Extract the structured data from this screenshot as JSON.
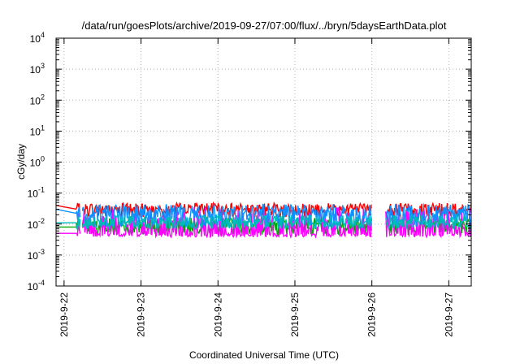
{
  "chart_data": {
    "type": "line",
    "title": "/data/run/goesPlots/archive/2019-09-27/07:00/flux/../bryn/5daysEarthData.plot",
    "xlabel": "Coordinated Universal Time (UTC)",
    "ylabel": "cGy/day",
    "yscale": "log",
    "ylim": [
      0.0001,
      10000
    ],
    "xlim": [
      "2019-09-21 21:30",
      "2019-09-27 07:00"
    ],
    "grid": true,
    "y_ticks": [
      {
        "value": 0.0001,
        "base": "10",
        "exp": "-4"
      },
      {
        "value": 0.001,
        "base": "10",
        "exp": "-3"
      },
      {
        "value": 0.01,
        "base": "10",
        "exp": "-2"
      },
      {
        "value": 0.1,
        "base": "10",
        "exp": "-1"
      },
      {
        "value": 1,
        "base": "10",
        "exp": "0"
      },
      {
        "value": 10,
        "base": "10",
        "exp": "1"
      },
      {
        "value": 100,
        "base": "10",
        "exp": "2"
      },
      {
        "value": 1000,
        "base": "10",
        "exp": "3"
      },
      {
        "value": 10000,
        "base": "10",
        "exp": "4"
      }
    ],
    "x_ticks": [
      {
        "value": "2019-09-22 00:00",
        "label": "2019-9-22"
      },
      {
        "value": "2019-09-23 00:00",
        "label": "2019-9-23"
      },
      {
        "value": "2019-09-24 00:00",
        "label": "2019-9-24"
      },
      {
        "value": "2019-09-25 00:00",
        "label": "2019-9-25"
      },
      {
        "value": "2019-09-26 00:00",
        "label": "2019-9-26"
      },
      {
        "value": "2019-09-27 00:00",
        "label": "2019-9-27"
      }
    ],
    "data_gaps": [
      [
        "2019-09-22 05:00",
        "2019-09-22 05:40"
      ],
      [
        "2019-09-26 00:00",
        "2019-09-26 04:10"
      ]
    ],
    "series": [
      {
        "color": "#ff0000",
        "baseline": 0.03,
        "noise_hi": 0.2,
        "noise_lo": 0.25,
        "start": 0.04
      },
      {
        "color": "#00aa00",
        "baseline": 0.008,
        "noise_hi": 0.3,
        "noise_lo": 0.25,
        "start": 0.008
      },
      {
        "color": "#ff00ff",
        "baseline": 0.005,
        "noise_hi": 0.85,
        "noise_lo": 0.12,
        "start": 0.005
      },
      {
        "color": "#1090ff",
        "baseline": 0.022,
        "noise_hi": 0.3,
        "noise_lo": 0.45,
        "start": 0.03
      },
      {
        "color": "#00bbbb",
        "baseline": 0.011,
        "noise_hi": 0.25,
        "noise_lo": 0.2,
        "start": 0.011
      }
    ]
  }
}
